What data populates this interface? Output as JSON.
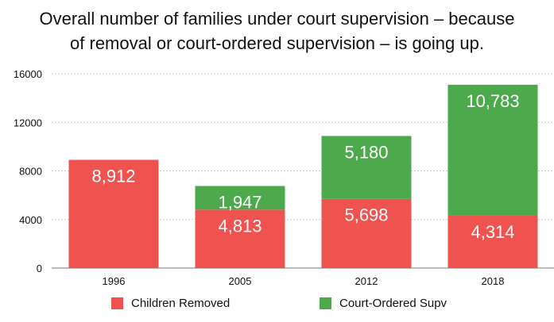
{
  "title": {
    "line1": "Overall number of families under court supervision – because",
    "line2": "of removal or court-ordered supervision – is going up."
  },
  "chart_data": {
    "type": "bar",
    "stacked": true,
    "categories": [
      "1996",
      "2005",
      "2012",
      "2018"
    ],
    "series": [
      {
        "name": "Children Removed",
        "color": "#ef5350",
        "values": [
          8912,
          4813,
          5698,
          4314
        ],
        "labels": [
          "8,912",
          "4,813",
          "5,698",
          "4,314"
        ]
      },
      {
        "name": "Court-Ordered Supv",
        "color": "#4caa4c",
        "values": [
          null,
          1947,
          5180,
          10783
        ],
        "labels": [
          "",
          "1,947",
          "5,180",
          "10,783"
        ]
      }
    ],
    "ylim": [
      0,
      16000
    ],
    "yticks": [
      0,
      4000,
      8000,
      12000,
      16000
    ],
    "ytick_labels": [
      "0",
      "4000",
      "8000",
      "12000",
      "16000"
    ],
    "grid": true,
    "legend": "bottom"
  }
}
